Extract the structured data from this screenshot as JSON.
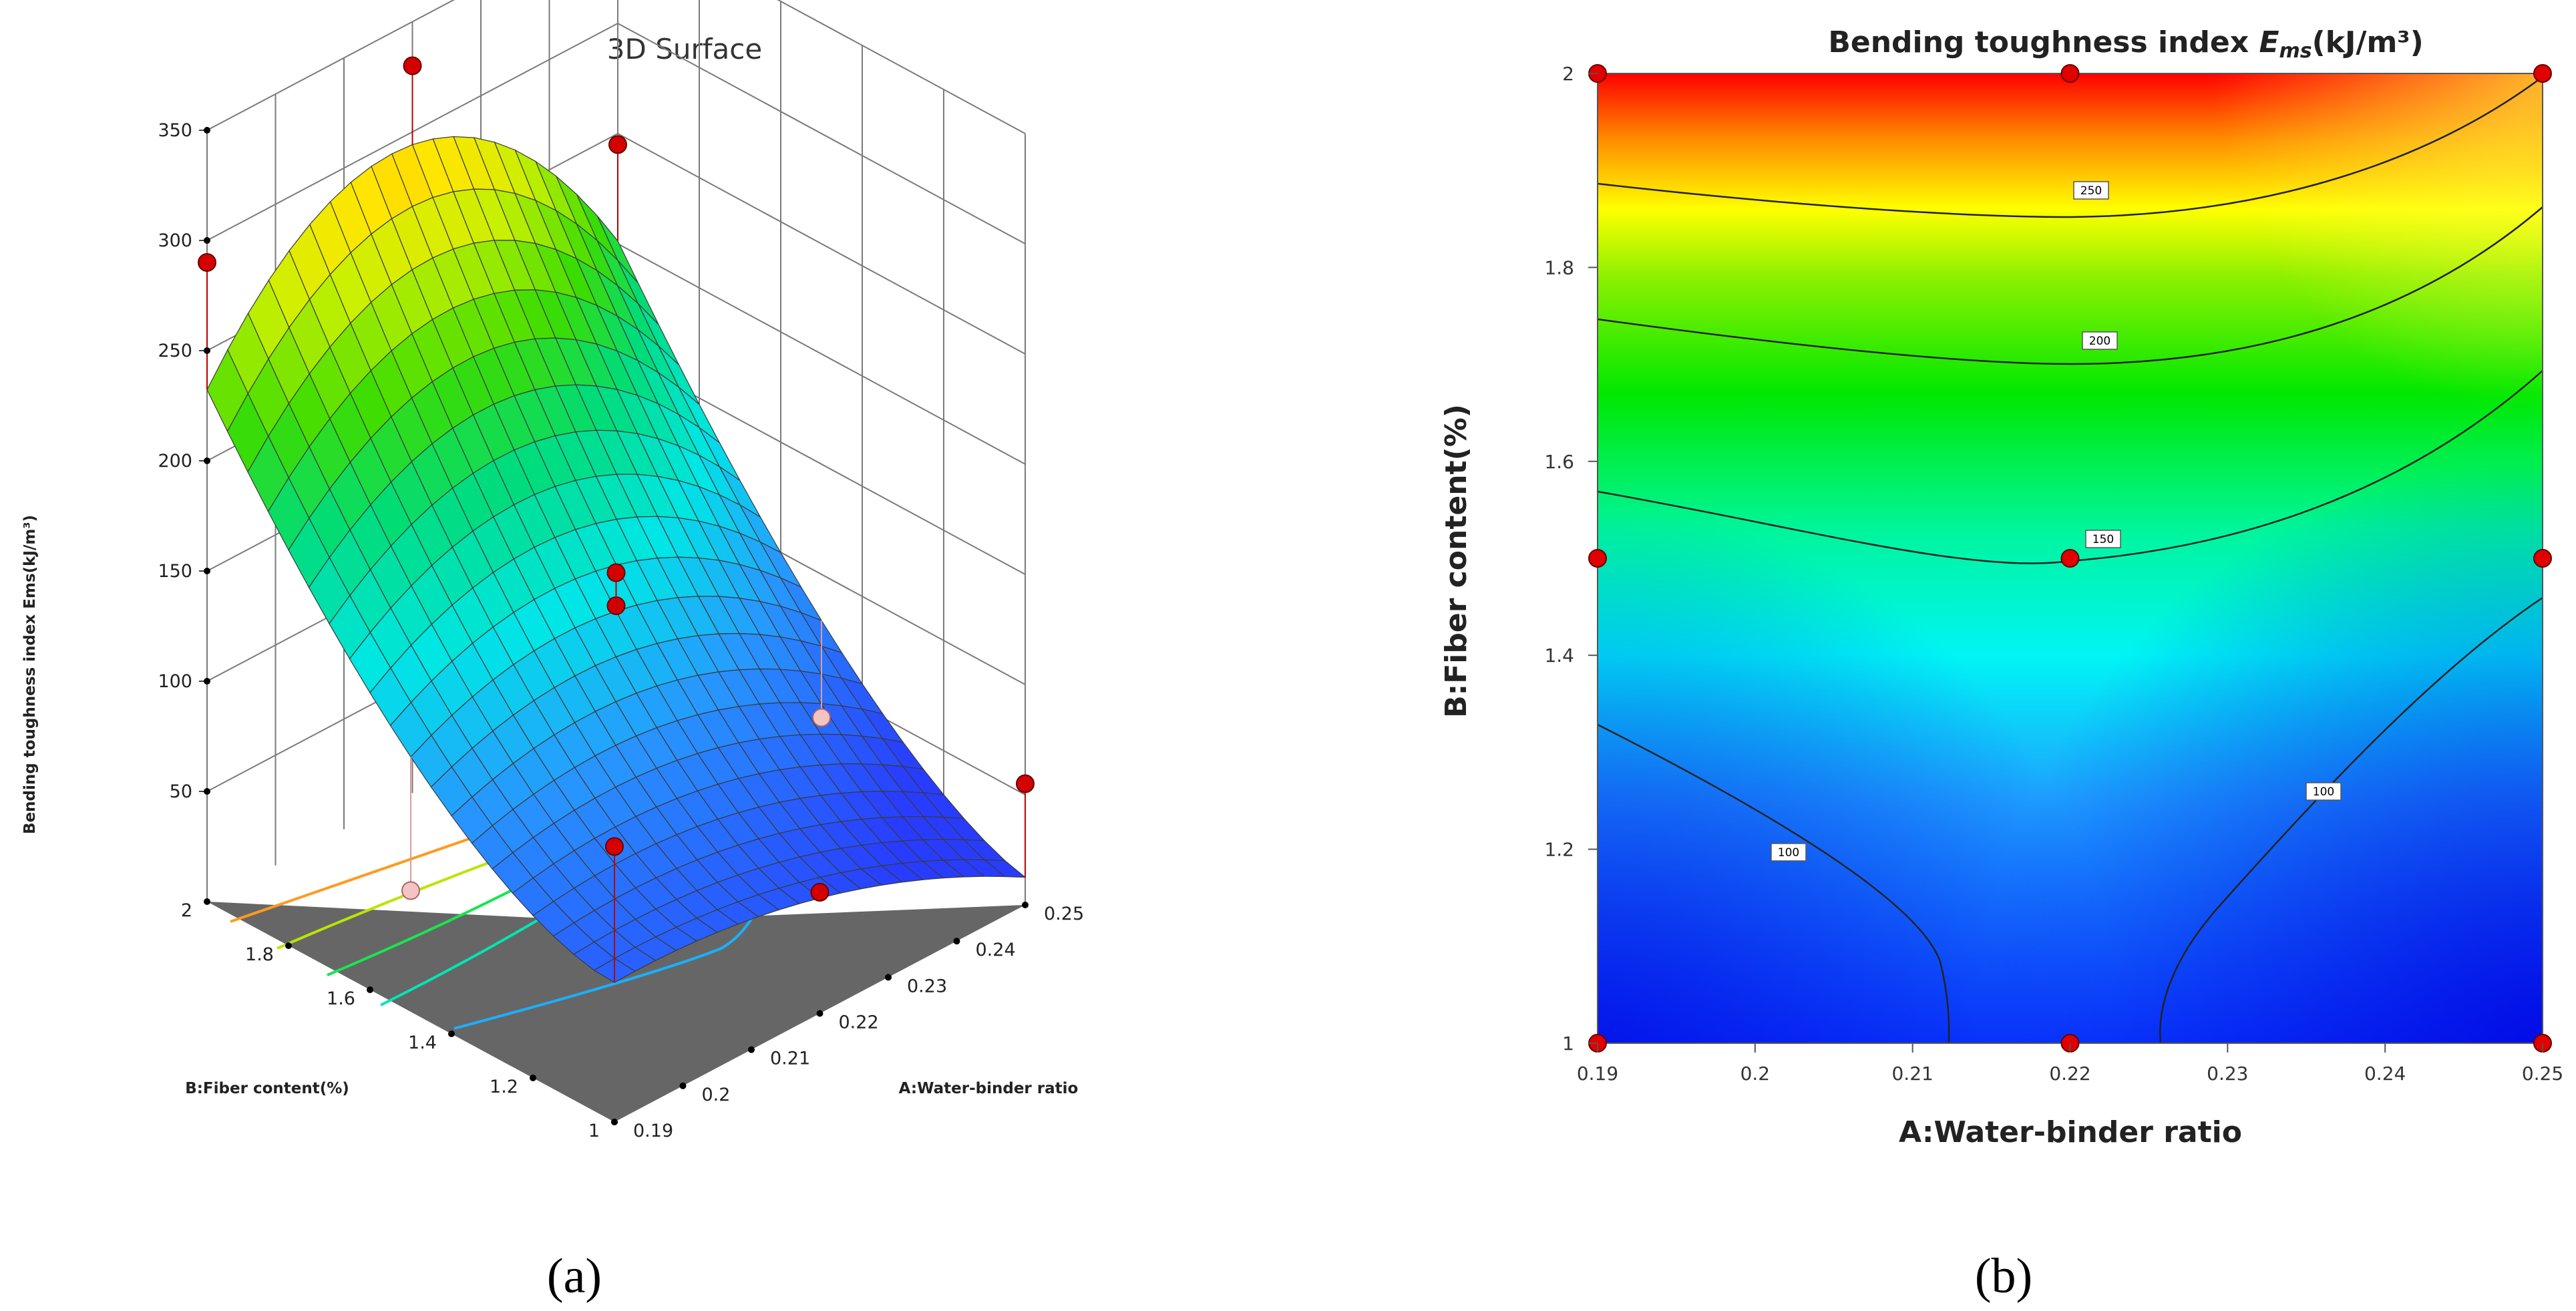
{
  "figure": {
    "panel_a_label": "(a)",
    "panel_b_label": "(b)"
  },
  "chart_data": [
    {
      "type": "surface3d",
      "title": "3D Surface",
      "xlabel": "A:Water-binder ratio",
      "ylabel": "B:Fiber content(%)",
      "zlabel": "Bending toughness index Ems(kJ/m³)",
      "x_ticks": [
        0.19,
        0.2,
        0.21,
        0.22,
        0.23,
        0.24,
        0.25
      ],
      "y_ticks": [
        1,
        1.2,
        1.4,
        1.6,
        1.8,
        2
      ],
      "z_ticks": [
        50,
        100,
        150,
        200,
        250,
        300,
        350
      ],
      "xlim": [
        0.19,
        0.25
      ],
      "ylim": [
        1,
        2
      ],
      "zlim": [
        0,
        350
      ],
      "design_points": [
        {
          "x": 0.19,
          "y": 2,
          "z": 290
        },
        {
          "x": 0.22,
          "y": 2,
          "z": 330
        },
        {
          "x": 0.25,
          "y": 2,
          "z": 245
        },
        {
          "x": 0.22,
          "y": 1.5,
          "z": 135
        },
        {
          "x": 0.22,
          "y": 1.5,
          "z": 150
        },
        {
          "x": 0.19,
          "y": 1.5,
          "z": 55
        },
        {
          "x": 0.25,
          "y": 1.5,
          "z": 35
        },
        {
          "x": 0.19,
          "y": 1,
          "z": 125
        },
        {
          "x": 0.22,
          "y": 1,
          "z": 55
        },
        {
          "x": 0.25,
          "y": 1,
          "z": 55
        }
      ]
    },
    {
      "type": "contour",
      "title_prefix": "Bending toughness index ",
      "title_symbol": "E",
      "title_subscript": "ms",
      "title_unit": "(kJ/m³)",
      "xlabel": "A:Water-binder ratio",
      "ylabel": "B:Fiber content(%)",
      "x_ticks": [
        0.19,
        0.2,
        0.21,
        0.22,
        0.23,
        0.24,
        0.25
      ],
      "x_tick_labels": [
        "0.19",
        "0.2",
        "0.21",
        "0.22",
        "0.23",
        "0.24",
        "0.25"
      ],
      "y_ticks": [
        1,
        1.2,
        1.4,
        1.6,
        1.8,
        2
      ],
      "y_tick_labels": [
        "1",
        "1.2",
        "1.4",
        "1.6",
        "1.8",
        "2"
      ],
      "xlim": [
        0.19,
        0.25
      ],
      "ylim": [
        1,
        2
      ],
      "contour_levels": [
        100,
        150,
        200,
        250
      ],
      "contour_label_text": [
        "100",
        "100",
        "150",
        "200",
        "250"
      ],
      "design_points": [
        {
          "x": 0.19,
          "y": 2
        },
        {
          "x": 0.22,
          "y": 2
        },
        {
          "x": 0.25,
          "y": 2
        },
        {
          "x": 0.19,
          "y": 1.5
        },
        {
          "x": 0.22,
          "y": 1.5
        },
        {
          "x": 0.25,
          "y": 1.5
        },
        {
          "x": 0.19,
          "y": 1
        },
        {
          "x": 0.22,
          "y": 1
        },
        {
          "x": 0.25,
          "y": 1
        }
      ],
      "colormap": [
        "#0000ff",
        "#0096ff",
        "#00ffff",
        "#00ff64",
        "#00ff00",
        "#b4ff00",
        "#ffff00",
        "#ffa000",
        "#ff0000"
      ]
    }
  ]
}
